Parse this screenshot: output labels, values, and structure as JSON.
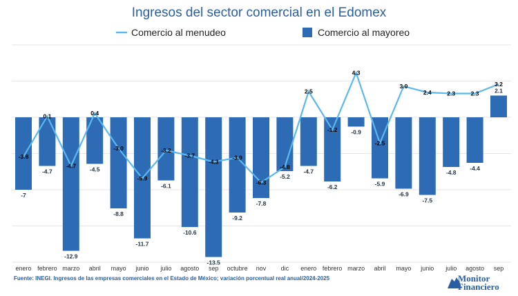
{
  "chart_data": {
    "type": "bar",
    "title": "Ingresos del sector comercial en el Edomex",
    "categories": [
      "enero",
      "febrero",
      "marzo",
      "abril",
      "mayo",
      "junio",
      "julio",
      "agosto",
      "sep",
      "octubre",
      "nov",
      "dic",
      "enero",
      "febrero",
      "marzo",
      "abril",
      "mayo",
      "junio",
      "julio",
      "agosto",
      "sep"
    ],
    "series": [
      {
        "name": "Comercio al menudeo",
        "type": "line",
        "color": "#5bb8ee",
        "values": [
          -3.8,
          0.1,
          -4.7,
          0.4,
          -3.0,
          -5.9,
          -3.2,
          -3.7,
          -4.3,
          -3.9,
          -6.3,
          -4.8,
          2.5,
          -1.2,
          4.3,
          -2.5,
          3.0,
          2.4,
          2.3,
          2.3,
          3.2
        ],
        "labels": [
          "-3.8",
          "0.1",
          "-4.7",
          "0.4",
          "-3.0",
          "-5.9",
          "-3.2",
          "-3.7",
          "-4.3",
          "-3.9",
          "-6.3",
          "-4.8",
          "2.5",
          "-1.2",
          "4.3",
          "-2.5",
          "3.0",
          "2.4",
          "2.3",
          "2.3",
          "3.2"
        ]
      },
      {
        "name": "Comercio al mayoreo",
        "type": "bar",
        "color": "#2e6bb5",
        "values": [
          -7,
          -4.7,
          -12.9,
          -4.5,
          -8.8,
          -11.7,
          -6.1,
          -10.6,
          -13.5,
          -9.2,
          -7.8,
          -5.2,
          -4.7,
          -6.2,
          -0.9,
          -5.9,
          -6.9,
          -7.5,
          -4.8,
          -4.4,
          2.1
        ],
        "labels": [
          "-7",
          "-4.7",
          "-12.9",
          "-4.5",
          "-8.8",
          "-11.7",
          "-6.1",
          "-10.6",
          "-13.5",
          "-9.2",
          "-7.8",
          "-5.2",
          "-4.7",
          "-6.2",
          "-0.9",
          "-5.9",
          "-6.9",
          "-7.5",
          "-4.8",
          "-4.4",
          "2.1"
        ]
      }
    ],
    "ylim": [
      -14,
      7
    ],
    "grid": true,
    "legend": "top-center"
  },
  "source": "Fuente: INEGI. Ingresos de las empresas comerciales en el Estado de México; variación porcentual real anual/2024-2025",
  "logo": {
    "line1": "Monitor",
    "line2": "Financiero"
  }
}
